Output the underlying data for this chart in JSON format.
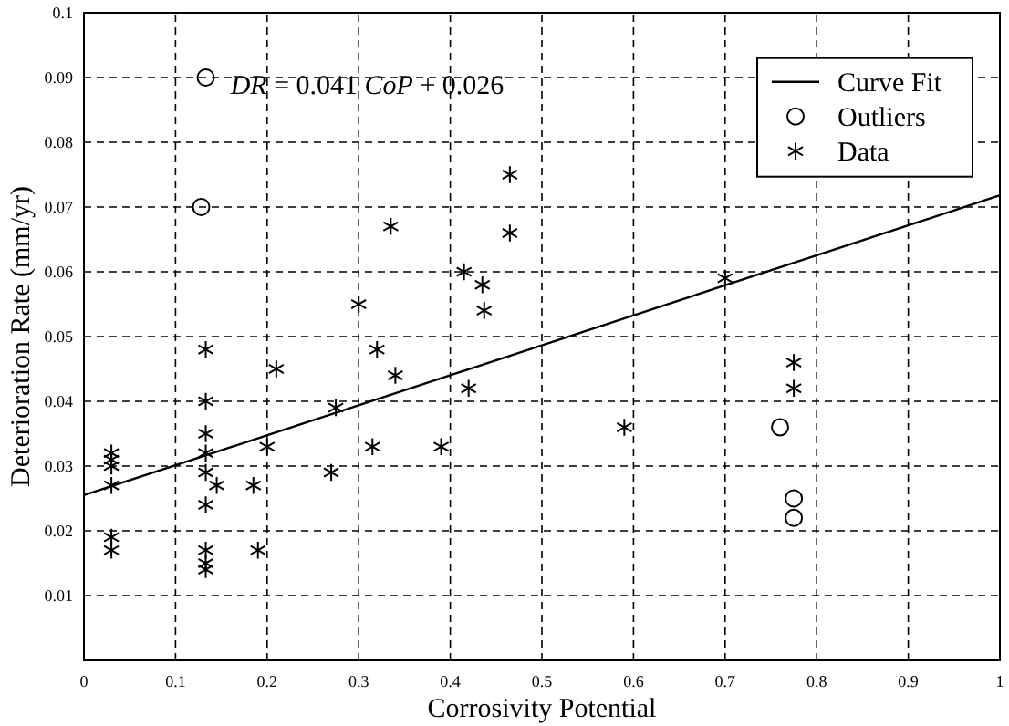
{
  "chart_data": {
    "type": "scatter",
    "xlabel": "Corrosivity Potential",
    "ylabel": "Deterioration Rate (mm/yr)",
    "xlim": [
      0,
      1
    ],
    "xticks": [
      0,
      0.1,
      0.2,
      0.3,
      0.4,
      0.5,
      0.6,
      0.7,
      0.8,
      0.9,
      1
    ],
    "ylim": [
      0,
      0.1
    ],
    "yticks": [
      {
        "value": 0,
        "label": null
      },
      0.01,
      0.02,
      0.03,
      0.04,
      0.05,
      0.06,
      0.07,
      0.08,
      0.09,
      0.1
    ],
    "grid": true,
    "legend": "top right",
    "annotations": [
      "DR = 0.041 CoP + 0.026"
    ],
    "series": [
      {
        "name": "Curve Fit",
        "type": "line",
        "color": "#000000",
        "line_style": "solid",
        "x": [
          0,
          1
        ],
        "values": [
          0.0255,
          0.0718
        ]
      },
      {
        "name": "Outliers",
        "color": "#000000",
        "marker": "circle",
        "x": [
          0.133,
          0.128,
          0.76,
          0.775,
          0.775
        ],
        "values": [
          0.09,
          0.07,
          0.036,
          0.025,
          0.022
        ]
      },
      {
        "name": "Data",
        "color": "#000000",
        "marker": "cross",
        "x": [
          0.03,
          0.03,
          0.03,
          0.03,
          0.03,
          0.03,
          0.133,
          0.133,
          0.133,
          0.133,
          0.133,
          0.133,
          0.133,
          0.133,
          0.133,
          0.145,
          0.185,
          0.19,
          0.2,
          0.21,
          0.27,
          0.275,
          0.3,
          0.315,
          0.32,
          0.335,
          0.34,
          0.39,
          0.415,
          0.42,
          0.435,
          0.437,
          0.465,
          0.465,
          0.59,
          0.7,
          0.775,
          0.775
        ],
        "values": [
          0.032,
          0.031,
          0.03,
          0.027,
          0.019,
          0.017,
          0.048,
          0.04,
          0.035,
          0.032,
          0.029,
          0.024,
          0.017,
          0.015,
          0.014,
          0.027,
          0.027,
          0.017,
          0.033,
          0.045,
          0.029,
          0.039,
          0.055,
          0.033,
          0.048,
          0.067,
          0.044,
          0.033,
          0.06,
          0.042,
          0.058,
          0.054,
          0.075,
          0.066,
          0.036,
          0.059,
          0.046,
          0.042
        ]
      }
    ]
  }
}
